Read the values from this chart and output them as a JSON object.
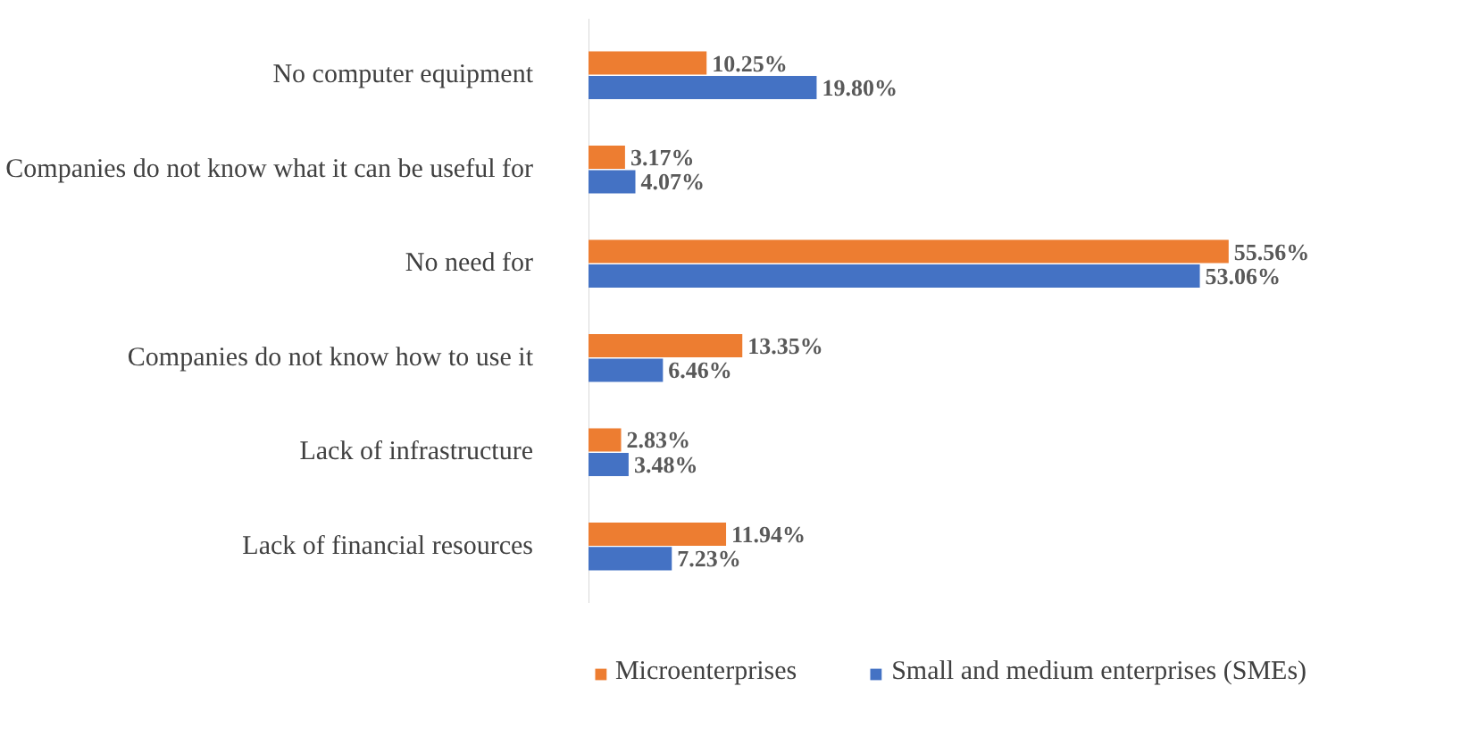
{
  "chart_data": {
    "type": "bar",
    "orientation": "horizontal",
    "categories": [
      "No computer equipment",
      "Companies do not know what it can be useful for",
      "No need for",
      "Companies do not know how to use it",
      "Lack of infrastructure",
      "Lack of financial resources"
    ],
    "series": [
      {
        "name": "Microenterprises",
        "color": "#ed7d31",
        "values": [
          10.25,
          3.17,
          55.56,
          13.35,
          2.83,
          11.94
        ],
        "value_labels": [
          "10.25%",
          "3.17%",
          "55.56%",
          "13.35%",
          "2.83%",
          "11.94%"
        ]
      },
      {
        "name": "Small and medium enterprises (SMEs)",
        "color": "#4472c4",
        "values": [
          19.8,
          4.07,
          53.06,
          6.46,
          3.48,
          7.23
        ],
        "value_labels": [
          "19.80%",
          "4.07%",
          "53.06%",
          "6.46%",
          "3.48%",
          "7.23%"
        ]
      }
    ],
    "legend": "bottom"
  }
}
